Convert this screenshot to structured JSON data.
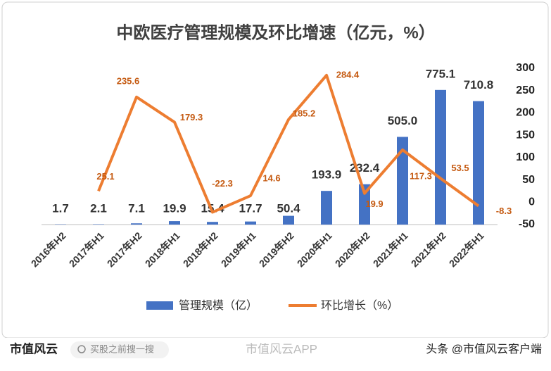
{
  "chart_data": {
    "type": "bar-line",
    "title": "中欧医疗管理规模及环比增速（亿元，%）",
    "categories": [
      "2016年H2",
      "2017年H1",
      "2017年H2",
      "2018年H1",
      "2018年H2",
      "2019年H1",
      "2019年H2",
      "2020年H1",
      "2020年H2",
      "2021年H1",
      "2021年H2",
      "2022年H1"
    ],
    "series": [
      {
        "name": "管理规模（亿）",
        "type": "bar",
        "color": "#4472c4",
        "axis": "y",
        "values": [
          1.7,
          2.1,
          7.1,
          19.9,
          15.4,
          17.7,
          50.4,
          193.9,
          232.4,
          505.0,
          775.1,
          710.8
        ],
        "value_labels": [
          "1.7",
          "2.1",
          "7.1",
          "19.9",
          "15.4",
          "17.7",
          "50.4",
          "193.9",
          "232.4",
          "505.0",
          "775.1",
          "710.8"
        ]
      },
      {
        "name": "环比增长（%）",
        "type": "line",
        "color": "#ed7d31",
        "axis": "y2",
        "values": [
          null,
          25.1,
          235.6,
          179.3,
          -22.3,
          14.6,
          185.2,
          284.4,
          19.9,
          117.3,
          53.5,
          -8.3
        ]
      }
    ],
    "ylim": [
      0,
      900
    ],
    "y2lim": [
      -50,
      300
    ],
    "y2ticks": [
      -50,
      0,
      50,
      100,
      150,
      200,
      250,
      300
    ],
    "legend": "bottom"
  },
  "footer": {
    "logo": "市值风云",
    "search": "买股之前搜一搜",
    "app": "市值风云APP",
    "credit": "头条 @市值风云客户端"
  }
}
